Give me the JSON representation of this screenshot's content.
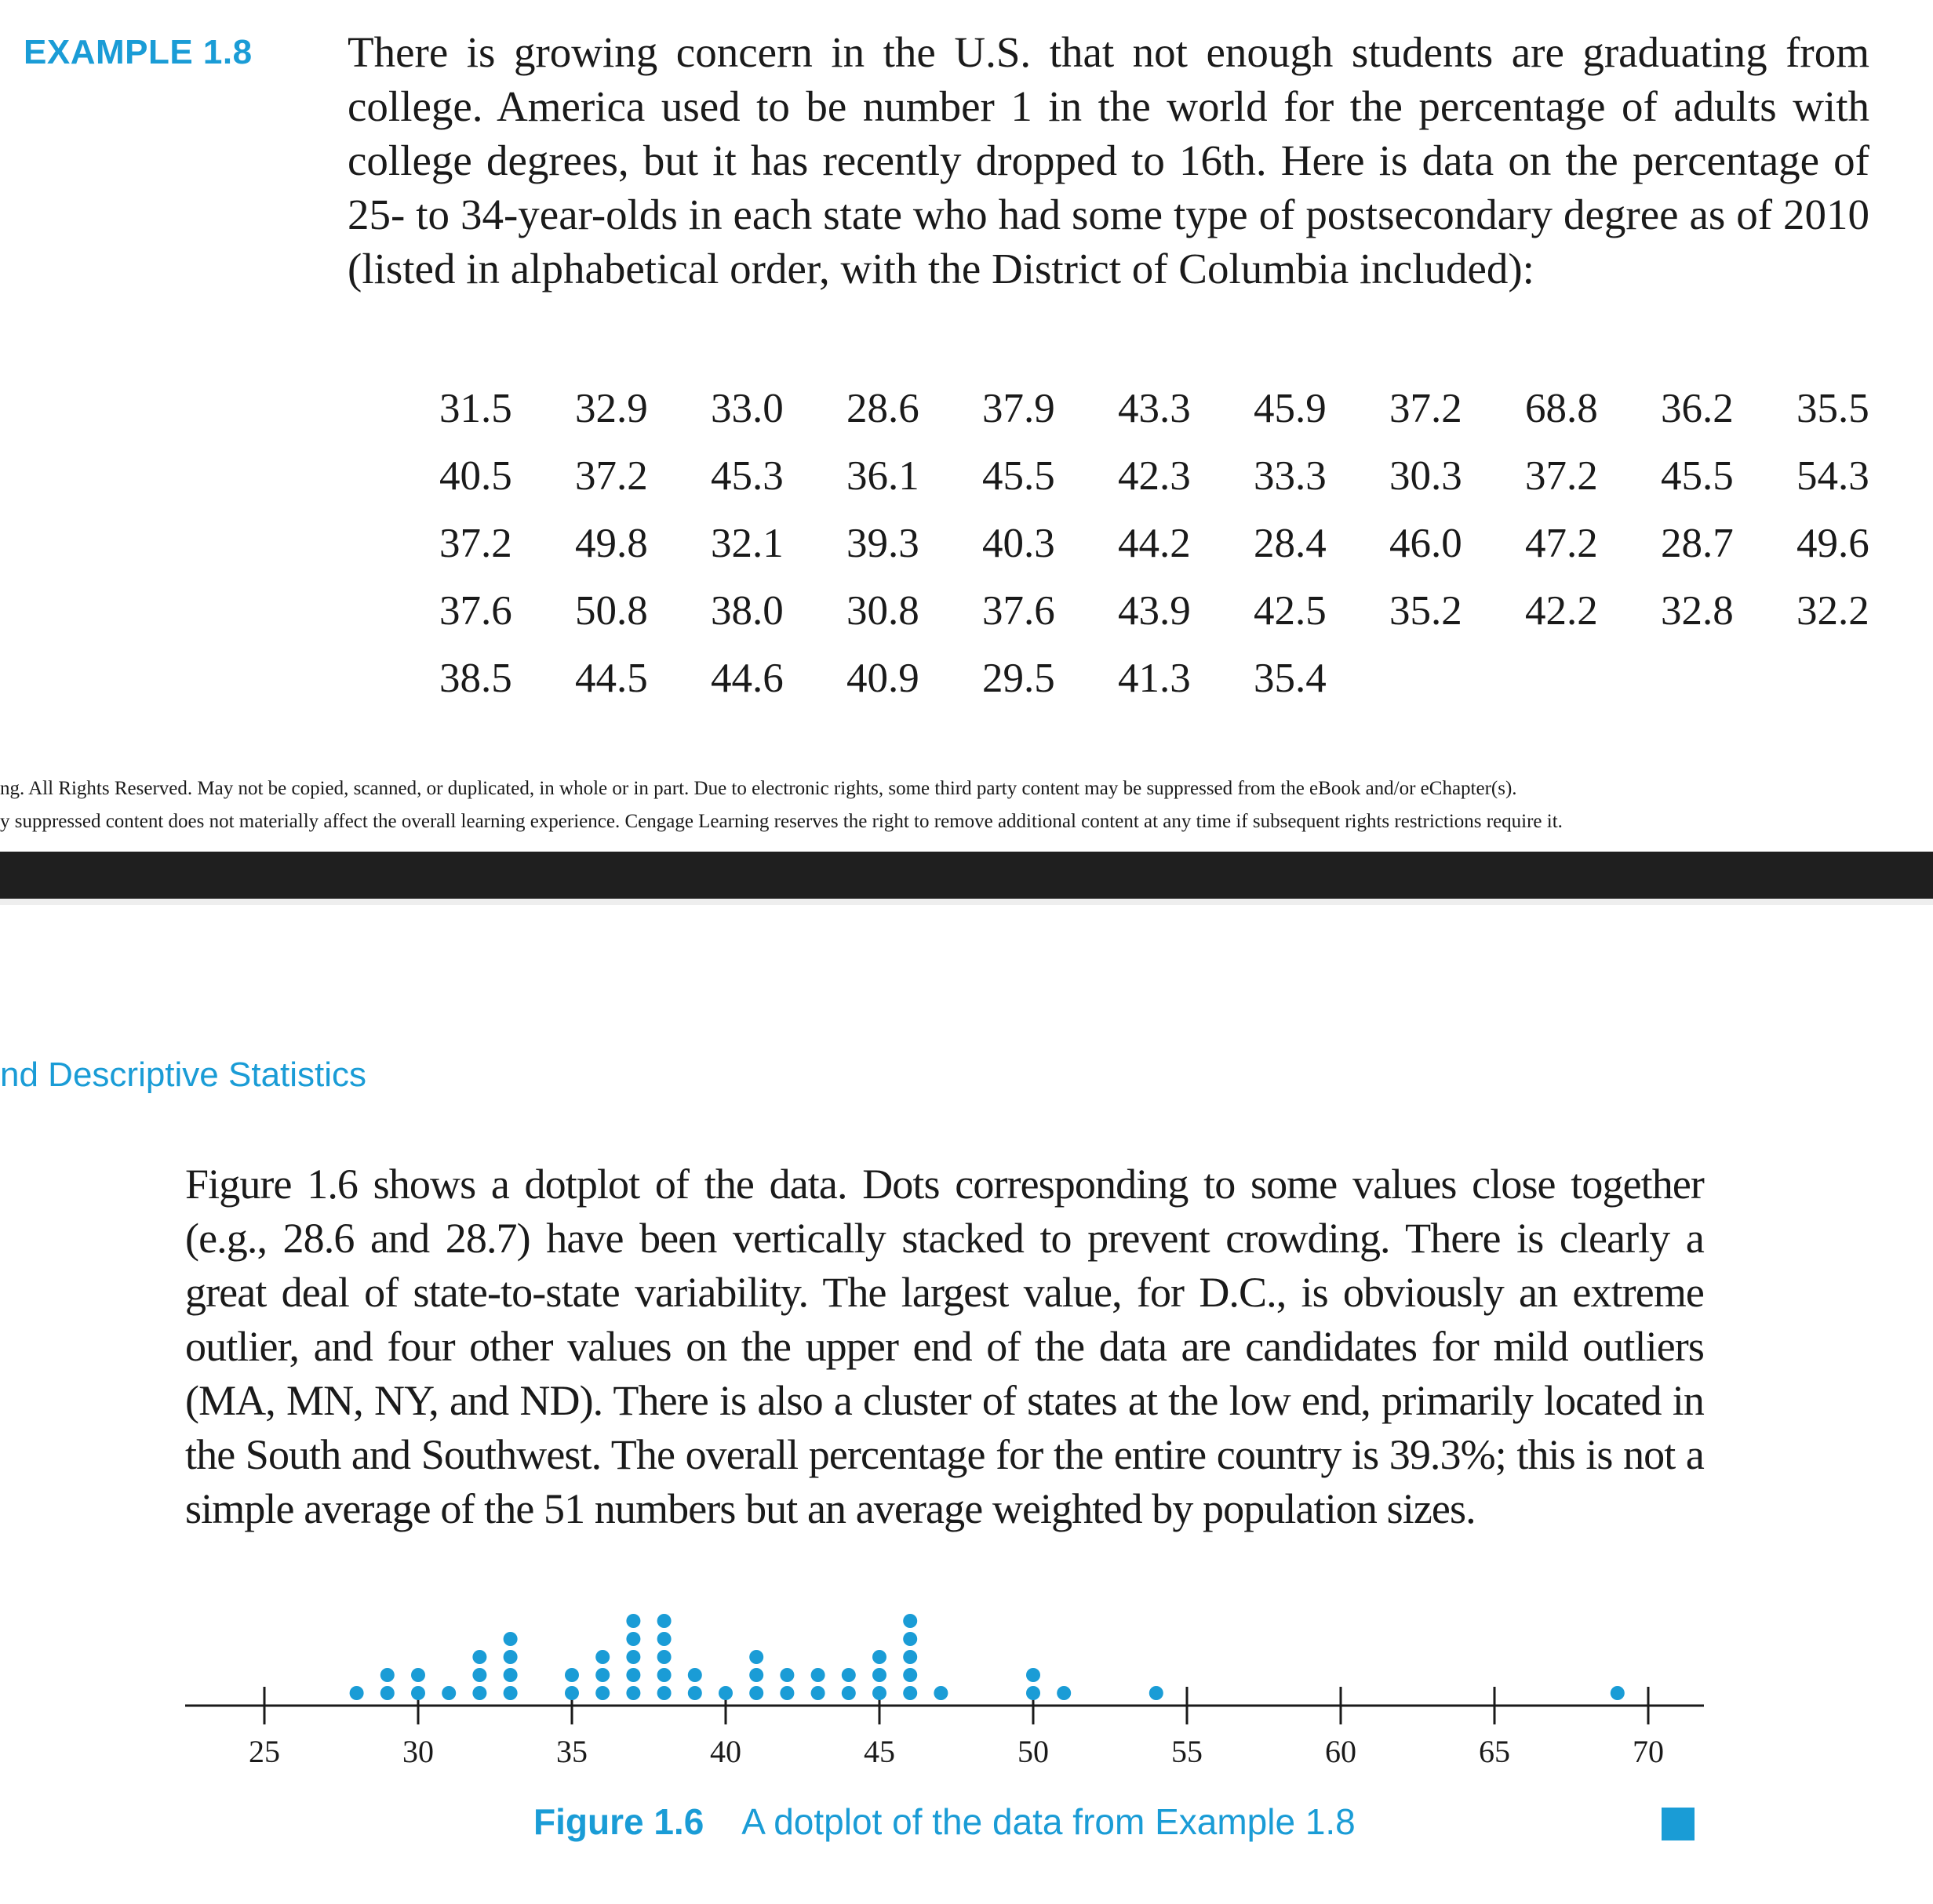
{
  "example": {
    "label": "EXAMPLE 1.8",
    "text": "There is growing concern in the U.S. that not enough students are graduating from college. America used to be number 1 in the world for the percentage of adults with college degrees, but it has recently dropped to 16th. Here is data on the percentage of 25- to 34-year-olds in each state who had some type of postsecondary degree as of 2010 (listed in alphabetical order, with the District of Columbia included):"
  },
  "data_rows": [
    [
      "31.5",
      "32.9",
      "33.0",
      "28.6",
      "37.9",
      "43.3",
      "45.9",
      "37.2",
      "68.8",
      "36.2",
      "35.5"
    ],
    [
      "40.5",
      "37.2",
      "45.3",
      "36.1",
      "45.5",
      "42.3",
      "33.3",
      "30.3",
      "37.2",
      "45.5",
      "54.3"
    ],
    [
      "37.2",
      "49.8",
      "32.1",
      "39.3",
      "40.3",
      "44.2",
      "28.4",
      "46.0",
      "47.2",
      "28.7",
      "49.6"
    ],
    [
      "37.6",
      "50.8",
      "38.0",
      "30.8",
      "37.6",
      "43.9",
      "42.5",
      "35.2",
      "42.2",
      "32.8",
      "32.2"
    ],
    [
      "38.5",
      "44.5",
      "44.6",
      "40.9",
      "29.5",
      "41.3",
      "35.4"
    ]
  ],
  "copyright": {
    "line1": "ng. All Rights Reserved. May not be copied, scanned, or duplicated, in whole or in part. Due to electronic rights, some third party content may be suppressed from the eBook and/or eChapter(s).",
    "line2": "y suppressed content does not materially affect the overall learning experience. Cengage Learning reserves the right to remove additional content at any time if subsequent rights restrictions require it."
  },
  "running_head": "nd Descriptive Statistics",
  "body_text": "Figure 1.6 shows a dotplot of the data. Dots corresponding to some values close together (e.g., 28.6 and 28.7) have been vertically stacked to prevent crowding. There is clearly a great deal of state-to-state variability. The largest value, for D.C., is obviously an extreme outlier, and four other values on the upper end of the data are candidates for mild outliers (MA, MN, NY, and ND). There is also a cluster of states at the low end, primarily located in the South and Southwest. The overall percentage for the entire country is 39.3%; this is not a simple average of the 51 numbers but an average weighted by population sizes.",
  "figure": {
    "number": "Figure 1.6",
    "caption": "A dotplot of the data from Example 1.8"
  },
  "colors": {
    "accent": "#1a9cd6",
    "dark_bar": "#1f1f1f",
    "text": "#1a1a1a"
  },
  "chart_data": {
    "type": "scatter",
    "title": "",
    "xlabel": "",
    "ylabel": "",
    "xlim": [
      22.5,
      72
    ],
    "ticks": [
      "25",
      "30",
      "35",
      "40",
      "45",
      "50",
      "55",
      "60",
      "65",
      "70"
    ],
    "points": [
      {
        "x": 28.0,
        "count": 1
      },
      {
        "x": 29.0,
        "count": 2
      },
      {
        "x": 30.0,
        "count": 2
      },
      {
        "x": 31.0,
        "count": 1
      },
      {
        "x": 32.0,
        "count": 3
      },
      {
        "x": 33.0,
        "count": 4
      },
      {
        "x": 35.0,
        "count": 2
      },
      {
        "x": 36.0,
        "count": 3
      },
      {
        "x": 37.0,
        "count": 5
      },
      {
        "x": 38.0,
        "count": 5
      },
      {
        "x": 39.0,
        "count": 2
      },
      {
        "x": 40.0,
        "count": 1
      },
      {
        "x": 41.0,
        "count": 3
      },
      {
        "x": 42.0,
        "count": 2
      },
      {
        "x": 43.0,
        "count": 2
      },
      {
        "x": 44.0,
        "count": 2
      },
      {
        "x": 45.0,
        "count": 3
      },
      {
        "x": 46.0,
        "count": 5
      },
      {
        "x": 47.0,
        "count": 1
      },
      {
        "x": 50.0,
        "count": 2
      },
      {
        "x": 51.0,
        "count": 1
      },
      {
        "x": 54.0,
        "count": 1
      },
      {
        "x": 69.0,
        "count": 1
      }
    ]
  }
}
